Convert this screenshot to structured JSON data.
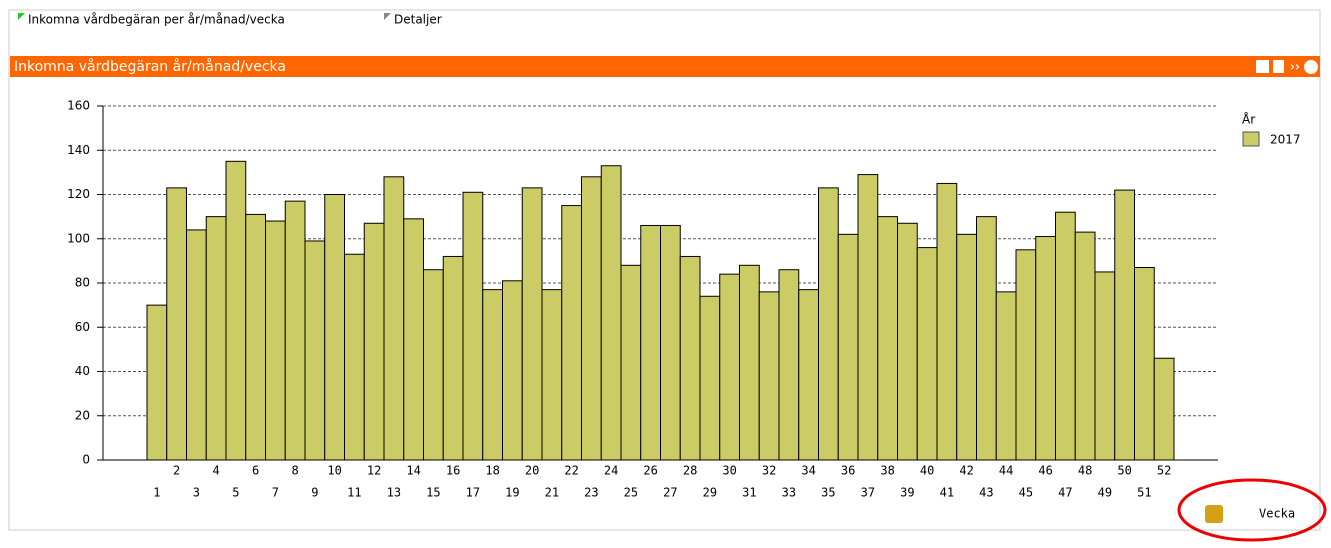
{
  "tabs": [
    "Inkomna vårdbegäran per år/månad/vecka",
    "Detaljer"
  ],
  "panel_title": "Inkomna vårdbegäran år/månad/vecka",
  "button_label": "Vecka",
  "chart_data": {
    "type": "bar",
    "categories": [
      "1",
      "2",
      "3",
      "4",
      "5",
      "6",
      "7",
      "8",
      "9",
      "10",
      "11",
      "12",
      "13",
      "14",
      "15",
      "16",
      "17",
      "18",
      "19",
      "20",
      "21",
      "22",
      "23",
      "24",
      "25",
      "26",
      "27",
      "28",
      "29",
      "30",
      "31",
      "32",
      "33",
      "34",
      "35",
      "36",
      "37",
      "38",
      "39",
      "40",
      "41",
      "42",
      "43",
      "44",
      "45",
      "46",
      "47",
      "48",
      "49",
      "50",
      "51",
      "52"
    ],
    "legend_title": "År",
    "series": [
      {
        "name": "2017",
        "color": "#cccc66",
        "values": [
          70,
          123,
          104,
          110,
          135,
          111,
          108,
          117,
          99,
          120,
          93,
          107,
          128,
          109,
          86,
          92,
          121,
          77,
          81,
          123,
          77,
          115,
          128,
          133,
          88,
          106,
          106,
          92,
          74,
          84,
          88,
          76,
          86,
          77,
          123,
          102,
          129,
          110,
          107,
          96,
          125,
          102,
          110,
          76,
          95,
          101,
          112,
          103,
          85,
          122,
          87,
          46
        ]
      }
    ],
    "ylim": [
      0,
      160
    ],
    "yticks": [
      0,
      20,
      40,
      60,
      80,
      100,
      120,
      140,
      160
    ],
    "grid": true
  }
}
